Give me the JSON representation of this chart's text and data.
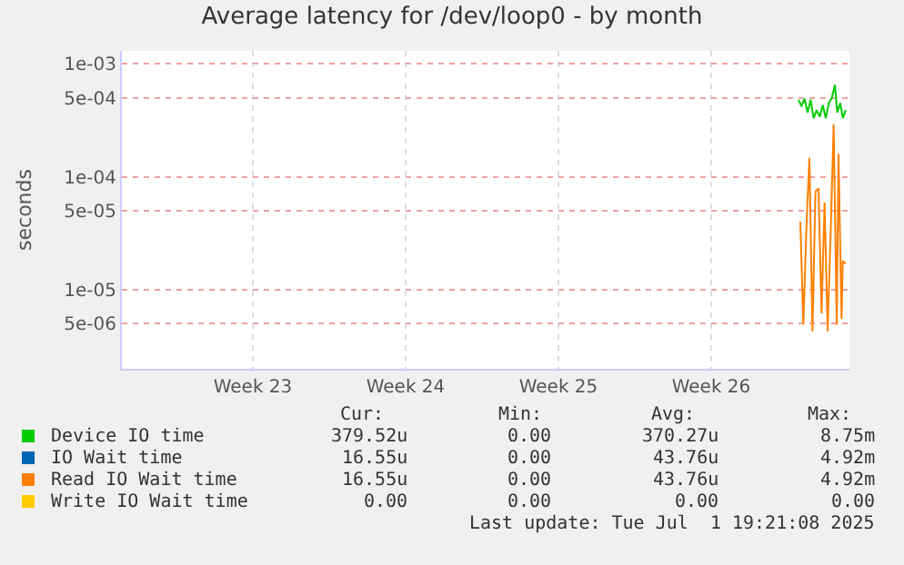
{
  "chart_data": {
    "type": "line",
    "title": "Average latency for /dev/loop0 - by month",
    "ylabel": "seconds",
    "log": "y",
    "grid": true,
    "legend": "bottom",
    "marker": "none",
    "line_style": "solid",
    "xlim": [
      "2025-05-30T12:00",
      "2025-07-02T20:00"
    ],
    "xticks": [
      {
        "value": "2025-06-05T12:00",
        "label": "Week 23"
      },
      {
        "value": "2025-06-12T12:00",
        "label": "Week 24"
      },
      {
        "value": "2025-06-19T12:00",
        "label": "Week 25"
      },
      {
        "value": "2025-06-26T12:00",
        "label": "Week 26"
      }
    ],
    "ylim": [
      2e-06,
      0.0013
    ],
    "yticks": [
      {
        "value": 0.001,
        "label": "1e-03"
      },
      {
        "value": 0.0005,
        "label": "5e-04"
      },
      {
        "value": 0.0001,
        "label": "1e-04"
      },
      {
        "value": 5e-05,
        "label": "5e-05"
      },
      {
        "value": 1e-05,
        "label": "1e-05"
      },
      {
        "value": 5e-06,
        "label": "5e-06"
      }
    ],
    "series": [
      {
        "name": "Device IO time",
        "color": "#00cc00",
        "x": [
          "2025-06-30T12:00",
          "2025-06-30T15:20",
          "2025-06-30T18:40",
          "2025-06-30T22:00",
          "2025-07-01T01:20",
          "2025-07-01T04:40",
          "2025-07-01T08:00",
          "2025-07-01T11:20",
          "2025-07-01T14:40",
          "2025-07-01T18:00",
          "2025-07-01T21:20",
          "2025-07-02T00:40",
          "2025-07-02T04:00",
          "2025-07-02T06:40",
          "2025-07-02T10:00",
          "2025-07-02T12:40",
          "2025-07-02T16:00"
        ],
        "values": [
          0.00048,
          0.00042,
          0.00049,
          0.00037,
          0.00048,
          0.00033,
          0.00039,
          0.00034,
          0.00043,
          0.00033,
          0.00045,
          0.0005,
          0.00065,
          0.00037,
          0.00045,
          0.00033,
          0.00039
        ]
      },
      {
        "name": "IO Wait time",
        "color": "#0066b3",
        "values": [
          null
        ]
      },
      {
        "name": "Read IO Wait time",
        "color": "#ff8000",
        "x": [
          "2025-06-30T14:00",
          "2025-06-30T17:20",
          "2025-06-30T20:40",
          "2025-07-01T00:00",
          "2025-07-01T03:20",
          "2025-07-01T06:40",
          "2025-07-01T10:00",
          "2025-07-01T13:20",
          "2025-07-01T16:40",
          "2025-07-01T20:00",
          "2025-07-01T23:20",
          "2025-07-02T02:40",
          "2025-07-02T06:00",
          "2025-07-02T08:00",
          "2025-07-02T11:20",
          "2025-07-02T12:40",
          "2025-07-02T16:00"
        ],
        "values": [
          4e-05,
          4.9e-06,
          3.5e-05,
          0.000147,
          4.3e-06,
          7.4e-05,
          7.9e-05,
          6.2e-06,
          5.9e-05,
          4.3e-06,
          3.2e-05,
          0.00029,
          4.9e-06,
          0.00016,
          5.5e-06,
          1.8e-05,
          1.7e-05
        ]
      },
      {
        "name": "Write IO Wait time",
        "color": "#ffcc00",
        "values": [
          null
        ]
      }
    ],
    "annotations": [
      "Cur:",
      "Min:",
      "Avg:",
      "Max:",
      "379.52u",
      "0.00",
      "370.27u",
      "8.75m",
      "16.55u",
      "0.00",
      "43.76u",
      "4.92m",
      "16.55u",
      "0.00",
      "43.76u",
      "4.92m",
      "0.00",
      "0.00",
      "0.00",
      "0.00",
      "Last update: Tue Jul  1 19:21:08 2025"
    ]
  }
}
